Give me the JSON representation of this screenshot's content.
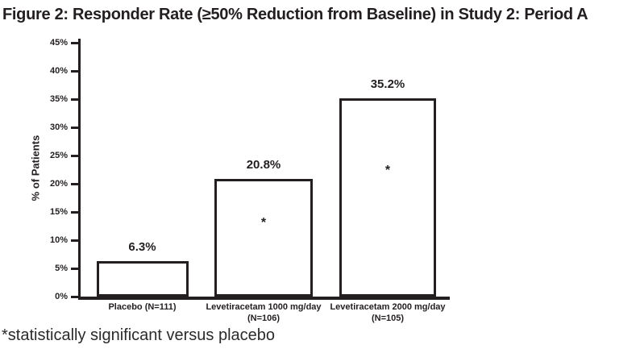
{
  "figure": {
    "title": "Figure 2: Responder Rate (≥50% Reduction from Baseline) in Study 2: Period A",
    "footnote": "*statistically significant versus placebo"
  },
  "chart_data": {
    "type": "bar",
    "title": "Figure 2: Responder Rate (≥50% Reduction from Baseline) in Study 2: Period A",
    "xlabel": "",
    "ylabel": "% of Patients",
    "ylim": [
      0,
      45
    ],
    "ytick_step": 5,
    "ytick_suffix": "%",
    "grid": false,
    "legend_position": "none",
    "categories": [
      "Placebo (N=111)",
      "Levetiracetam 1000 mg/day (N=106)",
      "Levetiracetam 2000 mg/day (N=105)"
    ],
    "category_lines": [
      [
        "Placebo (N=111)"
      ],
      [
        "Levetiracetam 1000 mg/day",
        "(N=106)"
      ],
      [
        "Levetiracetam 2000 mg/day",
        "(N=105)"
      ]
    ],
    "values": [
      6.3,
      20.8,
      35.2
    ],
    "value_labels": [
      "6.3%",
      "20.8%",
      "35.2%"
    ],
    "significant": [
      false,
      true,
      true
    ],
    "significance_marker": "*",
    "bar_fill_color": "#ffffff",
    "bar_border_color": "#231f20",
    "text_color": "#231f20"
  }
}
